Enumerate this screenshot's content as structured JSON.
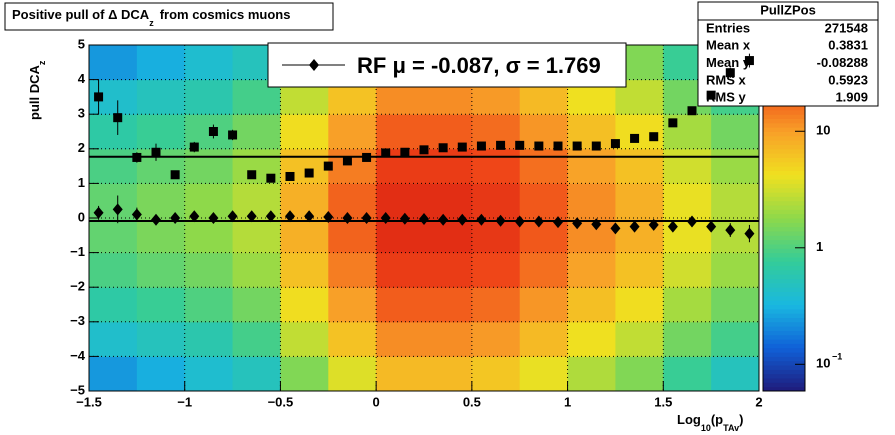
{
  "chart_data": {
    "type": "heatmap",
    "title": {
      "text": "Positive pull of Δ DCA",
      "subscript": "z",
      "suffix": "from cosmics muons"
    },
    "y_label": {
      "text": "pull DCA",
      "subscript": "z"
    },
    "x_label": {
      "prefix": "Log",
      "sub1": "10",
      "mid": "(p",
      "sub2": "TAv",
      "suffix": ")"
    },
    "xlim": [
      -1.5,
      2
    ],
    "ylim": [
      -5,
      5
    ],
    "xticks": [
      {
        "value": -1.5,
        "label": "−1.5"
      },
      {
        "value": -1,
        "label": "−1"
      },
      {
        "value": -0.5,
        "label": "−0.5"
      },
      0,
      0.5,
      1,
      1.5,
      2
    ],
    "yticks": [
      {
        "value": -5,
        "label": "−5"
      },
      {
        "value": -4,
        "label": "−4"
      },
      {
        "value": -3,
        "label": "−3"
      },
      {
        "value": -2,
        "label": "−2"
      },
      {
        "value": -1,
        "label": "−1"
      },
      0,
      1,
      2,
      3,
      4,
      5
    ],
    "grid": true,
    "heatmap": {
      "x_edges": [
        -1.5,
        -1.25,
        -1,
        -0.75,
        -0.5,
        -0.25,
        0,
        0.25,
        0.5,
        0.75,
        1,
        1.25,
        1.5,
        1.75,
        2
      ],
      "y_edges": [
        -5,
        -4,
        -3,
        -2,
        -1,
        0,
        1,
        2,
        3,
        4,
        5
      ],
      "values": [
        [
          0.24,
          0.42,
          0.66,
          0.96,
          1.2,
          1.2,
          0.96,
          0.66,
          0.42,
          0.24
        ],
        [
          0.3,
          0.5,
          0.8,
          1.2,
          1.5,
          1.5,
          1.2,
          0.8,
          0.5,
          0.3
        ],
        [
          0.4,
          0.6,
          1,
          1.4,
          1.8,
          1.8,
          1.4,
          1,
          0.6,
          0.4
        ],
        [
          0.5,
          0.9,
          1.4,
          2,
          2.5,
          2.5,
          2,
          1.4,
          0.9,
          0.5
        ],
        [
          1.6,
          2.8,
          4.4,
          6.4,
          8,
          8,
          6.4,
          4.4,
          2.8,
          1.6
        ],
        [
          3.6,
          6.3,
          10,
          14,
          18,
          18,
          14,
          10,
          6.3,
          3.6
        ],
        [
          7,
          12,
          19,
          28,
          35,
          35,
          28,
          19,
          12,
          7
        ],
        [
          7,
          12,
          19,
          28,
          35,
          35,
          28,
          19,
          12,
          7
        ],
        [
          6,
          10.5,
          16.5,
          24,
          30,
          30,
          24,
          16.5,
          10.5,
          6
        ],
        [
          4,
          7,
          11,
          16,
          20,
          20,
          16,
          11,
          7,
          4
        ],
        [
          2.4,
          4.2,
          6.6,
          9.6,
          12,
          12,
          9.6,
          6.6,
          4.2,
          2.4
        ],
        [
          1.6,
          2.8,
          4.4,
          6.4,
          8,
          8,
          6.4,
          4.4,
          2.8,
          1.6
        ],
        [
          0.8,
          1.4,
          2.2,
          3.2,
          4,
          4,
          3.2,
          2.2,
          1.4,
          0.8
        ],
        [
          0.5,
          0.9,
          1.4,
          2,
          2.5,
          2.5,
          2,
          1.4,
          0.9,
          0.5
        ]
      ]
    },
    "zlim": [
      0.059,
      55
    ],
    "zscale": "log",
    "zticks": [
      10,
      1,
      {
        "value": 0.1,
        "label": "10",
        "exponent": "−1"
      }
    ],
    "colormap": [
      "#1f1a7a",
      "#1060d8",
      "#19b8e0",
      "#33cc99",
      "#8ed94a",
      "#f0e020",
      "#f8a028",
      "#f04818",
      "#d21010"
    ],
    "profiles": {
      "x": [
        -1.45,
        -1.35,
        -1.25,
        -1.15,
        -1.05,
        -0.95,
        -0.85,
        -0.75,
        -0.65,
        -0.55,
        -0.45,
        -0.35,
        -0.25,
        -0.15,
        -0.05,
        0.05,
        0.15,
        0.25,
        0.35,
        0.45,
        0.55,
        0.65,
        0.75,
        0.85,
        0.95,
        1.05,
        1.15,
        1.25,
        1.35,
        1.45,
        1.55,
        1.65,
        1.75,
        1.85,
        1.95
      ],
      "series": [
        {
          "marker": "square",
          "color": "#000000",
          "values": [
            3.5,
            2.9,
            1.75,
            1.9,
            1.25,
            2.05,
            2.5,
            2.4,
            1.25,
            1.15,
            1.2,
            1.3,
            1.5,
            1.65,
            1.75,
            1.88,
            1.9,
            1.97,
            2.03,
            2.05,
            2.08,
            2.1,
            2.1,
            2.08,
            2.08,
            2.08,
            2.08,
            2.15,
            2.3,
            2.35,
            2.75,
            3.1,
            3.55,
            4.2,
            4.55
          ],
          "errors": [
            0.5,
            0.5,
            0.15,
            0.25,
            0.12,
            0.15,
            0.2,
            0.15,
            0.08,
            0.06,
            0.04,
            0.04,
            0.03,
            0.03,
            0.02,
            0.02,
            0.02,
            0.02,
            0.02,
            0.02,
            0.02,
            0.02,
            0.02,
            0.02,
            0.02,
            0.02,
            0.03,
            0.03,
            0.04,
            0.05,
            0.06,
            0.08,
            0.1,
            0.15,
            0.2
          ]
        },
        {
          "marker": "diamond",
          "color": "#000000",
          "values": [
            0.15,
            0.25,
            0.1,
            -0.05,
            0,
            0.05,
            0,
            0.05,
            0.05,
            0.05,
            0.05,
            0.05,
            0.03,
            0,
            0,
            0,
            -0.02,
            -0.03,
            -0.05,
            -0.05,
            -0.05,
            -0.08,
            -0.1,
            -0.1,
            -0.12,
            -0.15,
            -0.18,
            -0.3,
            -0.25,
            -0.2,
            -0.25,
            -0.1,
            -0.25,
            -0.35,
            -0.45
          ],
          "errors": [
            0.2,
            0.4,
            0.2,
            0.15,
            0.1,
            0.1,
            0.1,
            0.08,
            0.05,
            0.04,
            0.03,
            0.02,
            0.02,
            0.02,
            0.02,
            0.02,
            0.02,
            0.02,
            0.02,
            0.02,
            0.02,
            0.02,
            0.02,
            0.02,
            0.02,
            0.03,
            0.03,
            0.04,
            0.05,
            0.06,
            0.08,
            0.1,
            0.15,
            0.2,
            0.25
          ]
        }
      ]
    },
    "fit": {
      "sigma": 1.769,
      "mu": -0.087,
      "color": "#000000"
    },
    "legend": {
      "label": "RF μ = -0.087, σ =  1.769",
      "marker": "diamond"
    },
    "stats": {
      "title": "PullZPos",
      "rows": [
        [
          "Entries",
          271548
        ],
        [
          "Mean x",
          0.3831
        ],
        [
          "Mean y",
          -0.08288
        ],
        [
          "RMS x",
          0.5923
        ],
        [
          "RMS y",
          1.909
        ]
      ]
    }
  }
}
